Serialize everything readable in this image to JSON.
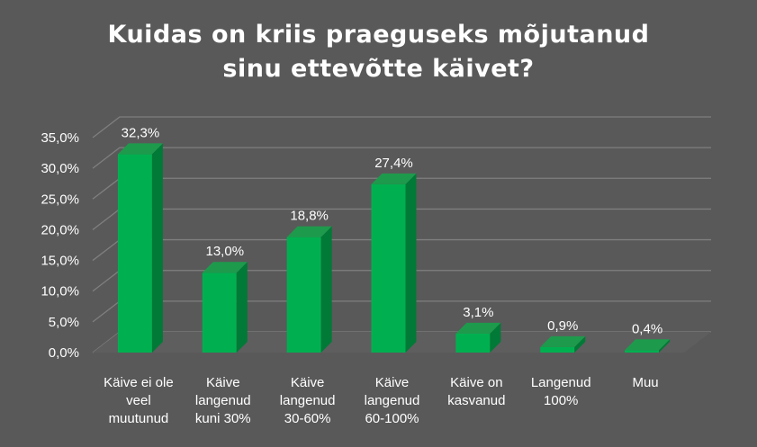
{
  "chart_data": {
    "type": "bar",
    "title_lines": [
      "Kuidas on kriis praeguseks mõjutanud",
      "sinu ettevõtte käivet?"
    ],
    "categories": [
      [
        "Käive ei ole",
        "veel",
        "muutunud"
      ],
      [
        "Käive",
        "langenud",
        "kuni 30%"
      ],
      [
        "Käive",
        "langenud",
        "30-60%"
      ],
      [
        "Käive",
        "langenud",
        "60-100%"
      ],
      [
        "Käive on",
        "kasvanud"
      ],
      [
        "Langenud",
        "100%"
      ],
      [
        "Muu"
      ]
    ],
    "values": [
      32.3,
      13.0,
      18.8,
      27.4,
      3.1,
      0.9,
      0.4
    ],
    "value_labels": [
      "32,3%",
      "13,0%",
      "18,8%",
      "27,4%",
      "3,1%",
      "0,9%",
      "0,4%"
    ],
    "yticks": [
      "0,0%",
      "5,0%",
      "10,0%",
      "15,0%",
      "20,0%",
      "25,0%",
      "30,0%",
      "35,0%"
    ],
    "ylim": [
      0,
      35
    ],
    "grid": true,
    "legend": "none",
    "colors": {
      "bar_front": "#00B050",
      "bar_side": "#007A36",
      "bar_top": "#1E9A4C",
      "background": "#595959",
      "grid": "#7F7F7F",
      "text": "#FFFFFF"
    }
  }
}
